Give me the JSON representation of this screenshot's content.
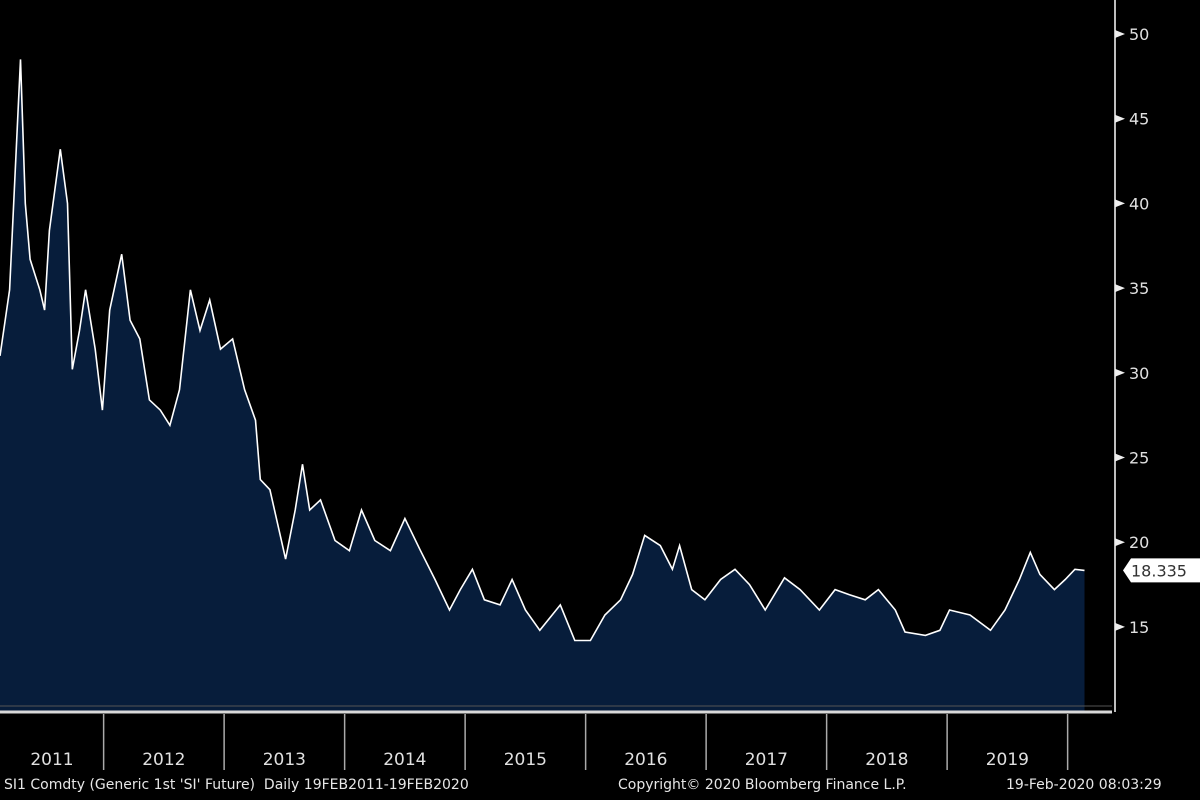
{
  "chart_data": {
    "type": "area",
    "title": "SI1 Comdty (Generic 1st 'SI' Future)",
    "frequency": "Daily",
    "range_label": "19FEB2011-19FEB2020",
    "xlim": [
      2011.14,
      2020.14
    ],
    "ylim": [
      10,
      52
    ],
    "y_ticks": [
      15,
      20,
      25,
      30,
      35,
      40,
      45,
      50
    ],
    "x_tick_labels": [
      "2011",
      "2012",
      "2013",
      "2014",
      "2015",
      "2016",
      "2017",
      "2018",
      "2019"
    ],
    "x_tick_years": [
      2011,
      2012,
      2013,
      2014,
      2015,
      2016,
      2017,
      2018,
      2019,
      2020
    ],
    "last_value": "18.335",
    "series": [
      {
        "name": "SI1 Comdty",
        "points": [
          [
            2011.14,
            31.0
          ],
          [
            2011.22,
            34.9
          ],
          [
            2011.31,
            48.5
          ],
          [
            2011.35,
            40.0
          ],
          [
            2011.39,
            36.7
          ],
          [
            2011.47,
            34.9
          ],
          [
            2011.51,
            33.7
          ],
          [
            2011.55,
            38.4
          ],
          [
            2011.64,
            43.2
          ],
          [
            2011.7,
            40.0
          ],
          [
            2011.74,
            30.2
          ],
          [
            2011.8,
            32.5
          ],
          [
            2011.85,
            34.9
          ],
          [
            2011.93,
            31.4
          ],
          [
            2011.99,
            27.8
          ],
          [
            2012.05,
            33.7
          ],
          [
            2012.15,
            37.0
          ],
          [
            2012.22,
            33.1
          ],
          [
            2012.3,
            32.0
          ],
          [
            2012.38,
            28.4
          ],
          [
            2012.47,
            27.8
          ],
          [
            2012.55,
            26.9
          ],
          [
            2012.63,
            29.0
          ],
          [
            2012.72,
            34.9
          ],
          [
            2012.8,
            32.5
          ],
          [
            2012.88,
            34.3
          ],
          [
            2012.97,
            31.4
          ],
          [
            2013.07,
            32.0
          ],
          [
            2013.17,
            29.0
          ],
          [
            2013.26,
            27.2
          ],
          [
            2013.3,
            23.7
          ],
          [
            2013.38,
            23.1
          ],
          [
            2013.51,
            19.0
          ],
          [
            2013.59,
            21.9
          ],
          [
            2013.65,
            24.6
          ],
          [
            2013.71,
            21.9
          ],
          [
            2013.8,
            22.5
          ],
          [
            2013.92,
            20.1
          ],
          [
            2014.04,
            19.5
          ],
          [
            2014.14,
            21.9
          ],
          [
            2014.25,
            20.1
          ],
          [
            2014.38,
            19.5
          ],
          [
            2014.5,
            21.4
          ],
          [
            2014.63,
            19.5
          ],
          [
            2014.75,
            17.8
          ],
          [
            2014.87,
            16.0
          ],
          [
            2014.96,
            17.2
          ],
          [
            2015.06,
            18.4
          ],
          [
            2015.16,
            16.6
          ],
          [
            2015.29,
            16.3
          ],
          [
            2015.39,
            17.8
          ],
          [
            2015.5,
            16.0
          ],
          [
            2015.62,
            14.8
          ],
          [
            2015.79,
            16.3
          ],
          [
            2015.91,
            14.2
          ],
          [
            2016.04,
            14.2
          ],
          [
            2016.16,
            15.7
          ],
          [
            2016.29,
            16.6
          ],
          [
            2016.39,
            18.1
          ],
          [
            2016.49,
            20.4
          ],
          [
            2016.62,
            19.8
          ],
          [
            2016.72,
            18.4
          ],
          [
            2016.78,
            19.8
          ],
          [
            2016.88,
            17.2
          ],
          [
            2016.99,
            16.6
          ],
          [
            2017.12,
            17.8
          ],
          [
            2017.24,
            18.4
          ],
          [
            2017.36,
            17.5
          ],
          [
            2017.49,
            16.0
          ],
          [
            2017.65,
            17.9
          ],
          [
            2017.78,
            17.2
          ],
          [
            2017.94,
            16.0
          ],
          [
            2018.07,
            17.2
          ],
          [
            2018.19,
            16.9
          ],
          [
            2018.32,
            16.6
          ],
          [
            2018.43,
            17.2
          ],
          [
            2018.57,
            16.0
          ],
          [
            2018.65,
            14.7
          ],
          [
            2018.82,
            14.5
          ],
          [
            2018.94,
            14.8
          ],
          [
            2019.02,
            16.0
          ],
          [
            2019.19,
            15.7
          ],
          [
            2019.36,
            14.8
          ],
          [
            2019.48,
            16.0
          ],
          [
            2019.6,
            17.8
          ],
          [
            2019.69,
            19.4
          ],
          [
            2019.77,
            18.1
          ],
          [
            2019.89,
            17.2
          ],
          [
            2019.98,
            17.8
          ],
          [
            2020.06,
            18.4
          ],
          [
            2020.14,
            18.335
          ]
        ]
      }
    ],
    "grid": false,
    "legend": "none"
  },
  "footer": {
    "description": "SI1 Comdty (Generic 1st 'SI' Future)  Daily 19FEB2011-19FEB2020",
    "copyright": "Copyright© 2020 Bloomberg Finance L.P.",
    "timestamp": "19-Feb-2020 08:03:29"
  },
  "colors": {
    "fill": "#071d3b",
    "line": "#ffffff",
    "background": "#000000"
  }
}
